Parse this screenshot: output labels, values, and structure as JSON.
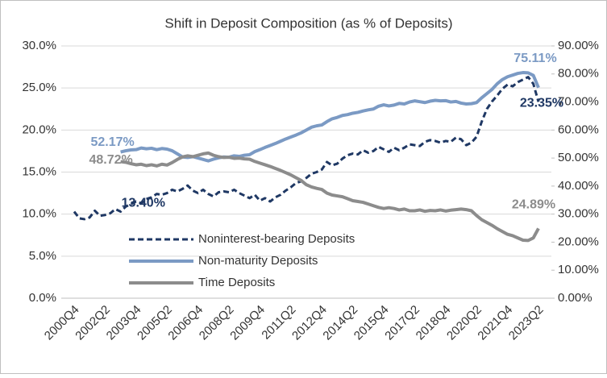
{
  "chart_data": {
    "type": "line",
    "title": "Shift in Deposit Composition (as % of Deposits)",
    "categories": [
      "2000Q4",
      null,
      null,
      null,
      null,
      null,
      "2002Q2",
      null,
      null,
      null,
      null,
      null,
      "2003Q4",
      null,
      null,
      null,
      null,
      null,
      "2005Q2",
      null,
      null,
      null,
      null,
      null,
      "2006Q4",
      null,
      null,
      null,
      null,
      null,
      "2008Q2",
      null,
      null,
      null,
      null,
      null,
      "2009Q4",
      null,
      null,
      null,
      null,
      null,
      "2011Q2",
      null,
      null,
      null,
      null,
      null,
      "2012Q4",
      null,
      null,
      null,
      null,
      null,
      "2014Q2",
      null,
      null,
      null,
      null,
      null,
      "2015Q4",
      null,
      null,
      null,
      null,
      null,
      "2017Q2",
      null,
      null,
      null,
      null,
      null,
      "2018Q4",
      null,
      null,
      null,
      null,
      null,
      "2020Q2",
      null,
      null,
      null,
      null,
      null,
      "2021Q4",
      null,
      null,
      null,
      null,
      null,
      "2023Q2"
    ],
    "ylim": [
      0,
      30
    ],
    "yticks": [
      {
        "value": 0,
        "label": "0.0%"
      },
      {
        "value": 5,
        "label": "5.0%"
      },
      {
        "value": 10,
        "label": "10.0%"
      },
      {
        "value": 15,
        "label": "15.0%"
      },
      {
        "value": 20,
        "label": "20.0%"
      },
      {
        "value": 25,
        "label": "25.0%"
      },
      {
        "value": 30,
        "label": "30.0%"
      }
    ],
    "y2lim": [
      0,
      90
    ],
    "y2ticks": [
      {
        "value": 0,
        "label": "0.00%"
      },
      {
        "value": 10,
        "label": "10.00%"
      },
      {
        "value": 20,
        "label": "20.00%"
      },
      {
        "value": 30,
        "label": "30.00%"
      },
      {
        "value": 40,
        "label": "40.00%"
      },
      {
        "value": 50,
        "label": "50.00%"
      },
      {
        "value": 60,
        "label": "60.00%"
      },
      {
        "value": 70,
        "label": "70.00%"
      },
      {
        "value": 80,
        "label": "80.00%"
      },
      {
        "value": 90,
        "label": "90.00%"
      }
    ],
    "grid": true,
    "legend": "bottom-left",
    "series": [
      {
        "name": "Noninterest-bearing Deposits",
        "color": "#1f3864",
        "dashed": true,
        "axis": "y",
        "values": [
          10.3,
          9.5,
          9.4,
          9.6,
          10.4,
          9.8,
          9.9,
          10.1,
          10.6,
          10.3,
          10.9,
          11.2,
          11.5,
          11.3,
          11.8,
          12.0,
          12.4,
          12.3,
          12.5,
          12.9,
          12.7,
          13.0,
          13.4,
          12.8,
          12.5,
          12.9,
          12.4,
          12.1,
          12.6,
          12.7,
          12.6,
          12.9,
          12.5,
          12.2,
          11.9,
          12.3,
          11.6,
          11.9,
          11.5,
          12.0,
          12.3,
          12.8,
          13.2,
          13.7,
          13.9,
          14.3,
          14.8,
          15.0,
          15.3,
          16.2,
          15.8,
          16.0,
          16.6,
          17.0,
          17.2,
          17.1,
          17.6,
          17.3,
          17.5,
          18.0,
          17.7,
          17.4,
          17.9,
          17.6,
          17.9,
          18.3,
          18.2,
          18.1,
          18.6,
          18.8,
          18.7,
          18.5,
          18.7,
          18.6,
          19.1,
          18.9,
          18.2,
          18.5,
          19.2,
          21.0,
          22.5,
          23.4,
          24.1,
          24.9,
          25.4,
          25.2,
          25.7,
          26.0,
          26.3,
          25.5,
          23.35
        ],
        "value_labels": [
          null,
          null,
          null,
          null,
          null,
          null,
          null,
          null,
          null,
          null,
          null,
          null,
          null,
          null,
          null,
          null,
          null,
          null,
          null,
          null,
          null,
          null,
          "13.40%",
          null,
          null,
          null,
          null,
          null,
          null,
          null,
          null,
          null,
          null,
          null,
          null,
          null,
          null,
          null,
          null,
          null,
          null,
          null,
          null,
          null,
          null,
          null,
          null,
          null,
          null,
          null,
          null,
          null,
          null,
          null,
          null,
          null,
          null,
          null,
          null,
          null,
          null,
          null,
          null,
          null,
          null,
          null,
          null,
          null,
          null,
          null,
          null,
          null,
          null,
          null,
          null,
          null,
          null,
          null,
          null,
          null,
          null,
          null,
          null,
          null,
          null,
          null,
          null,
          null,
          null,
          null,
          "23.35%"
        ]
      },
      {
        "name": "Non-maturity Deposits",
        "color": "#7b9ac4",
        "axis": "y2",
        "values": [
          null,
          null,
          null,
          null,
          null,
          null,
          null,
          null,
          null,
          52.17,
          52.6,
          52.9,
          53.0,
          53.6,
          53.3,
          53.5,
          53.0,
          53.4,
          53.2,
          52.6,
          51.5,
          50.4,
          50.2,
          50.5,
          50.0,
          49.5,
          49.0,
          49.6,
          50.1,
          50.4,
          50.3,
          50.8,
          50.6,
          51.0,
          51.2,
          52.3,
          53.0,
          53.8,
          54.5,
          55.2,
          56.0,
          56.8,
          57.5,
          58.2,
          59.0,
          60.0,
          61.0,
          61.5,
          61.8,
          63.0,
          64.0,
          64.5,
          65.2,
          65.5,
          66.0,
          66.3,
          66.8,
          67.2,
          67.5,
          68.5,
          69.0,
          68.6,
          68.9,
          69.5,
          69.3,
          70.0,
          70.4,
          70.1,
          69.8,
          70.3,
          70.6,
          70.4,
          70.5,
          70.0,
          70.2,
          69.6,
          69.3,
          69.4,
          69.8,
          71.5,
          73.0,
          74.5,
          76.5,
          78.0,
          79.0,
          79.6,
          80.2,
          80.5,
          80.4,
          79.5,
          75.11
        ],
        "value_labels": [
          null,
          null,
          null,
          null,
          null,
          null,
          null,
          null,
          null,
          "52.17%",
          null,
          null,
          null,
          null,
          null,
          null,
          null,
          null,
          null,
          null,
          null,
          null,
          null,
          null,
          null,
          null,
          null,
          null,
          null,
          null,
          null,
          null,
          null,
          null,
          null,
          null,
          null,
          null,
          null,
          null,
          null,
          null,
          null,
          null,
          null,
          null,
          null,
          null,
          null,
          null,
          null,
          null,
          null,
          null,
          null,
          null,
          null,
          null,
          null,
          null,
          null,
          null,
          null,
          null,
          null,
          null,
          null,
          null,
          null,
          null,
          null,
          null,
          null,
          null,
          null,
          null,
          null,
          null,
          null,
          null,
          null,
          null,
          null,
          null,
          null,
          null,
          null,
          null,
          null,
          null,
          "75.11%"
        ]
      },
      {
        "name": "Time Deposits",
        "color": "#8c8c8c",
        "axis": "y2",
        "values": [
          null,
          null,
          null,
          null,
          null,
          null,
          null,
          null,
          null,
          48.72,
          48.5,
          48.0,
          47.6,
          47.8,
          47.3,
          47.6,
          47.2,
          47.8,
          47.5,
          48.4,
          49.5,
          50.4,
          50.8,
          50.5,
          51.0,
          51.5,
          51.8,
          51.0,
          50.5,
          50.2,
          50.3,
          49.9,
          50.0,
          49.7,
          49.6,
          48.8,
          48.2,
          47.6,
          47.0,
          46.3,
          45.6,
          44.8,
          44.0,
          43.0,
          42.0,
          40.5,
          39.7,
          39.2,
          38.8,
          37.5,
          36.8,
          36.5,
          36.2,
          35.5,
          34.8,
          34.5,
          34.2,
          33.6,
          33.0,
          32.4,
          32.0,
          32.3,
          32.0,
          31.5,
          31.8,
          31.2,
          31.2,
          31.5,
          31.0,
          31.3,
          31.2,
          31.5,
          31.1,
          31.4,
          31.6,
          31.8,
          31.6,
          31.2,
          29.5,
          28.0,
          27.0,
          26.0,
          24.8,
          23.8,
          22.8,
          22.3,
          21.5,
          20.7,
          20.6,
          21.5,
          24.89
        ],
        "value_labels": [
          null,
          null,
          null,
          null,
          null,
          null,
          null,
          null,
          null,
          "48.72%",
          null,
          null,
          null,
          null,
          null,
          null,
          null,
          null,
          null,
          null,
          null,
          null,
          null,
          null,
          null,
          null,
          null,
          null,
          null,
          null,
          null,
          null,
          null,
          null,
          null,
          null,
          null,
          null,
          null,
          null,
          null,
          null,
          null,
          null,
          null,
          null,
          null,
          null,
          null,
          null,
          null,
          null,
          null,
          null,
          null,
          null,
          null,
          null,
          null,
          null,
          null,
          null,
          null,
          null,
          null,
          null,
          null,
          null,
          null,
          null,
          null,
          null,
          null,
          null,
          null,
          null,
          null,
          null,
          null,
          null,
          null,
          null,
          null,
          null,
          null,
          null,
          null,
          null,
          null,
          null,
          "24.89%"
        ]
      }
    ]
  }
}
